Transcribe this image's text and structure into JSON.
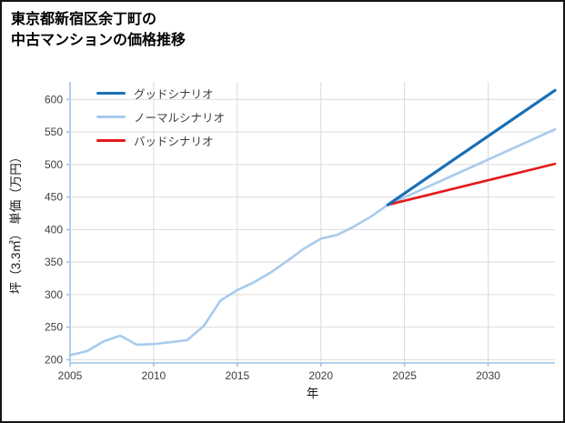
{
  "title": {
    "line1": "東京都新宿区余丁町の",
    "line2": "中古マンションの価格推移"
  },
  "chart_data": {
    "type": "line",
    "title": "東京都新宿区余丁町の中古マンションの価格推移",
    "xlabel": "年",
    "ylabel": "坪（3.3㎡） 単価（万円）",
    "xlim": [
      2005,
      2034
    ],
    "ylim": [
      195,
      627
    ],
    "xticks": [
      2005,
      2010,
      2015,
      2020,
      2025,
      2030
    ],
    "yticks": [
      200,
      250,
      300,
      350,
      400,
      450,
      500,
      550,
      600
    ],
    "grid": true,
    "grid_color": "#dcdcdc",
    "axis_color": "#9cc3e8",
    "tick_label_color": "#404040",
    "axis_label_color": "#1a1a1a",
    "legend_position": "upper-left",
    "series": [
      {
        "name": "グッドシナリオ",
        "color": "#1a6fb5",
        "width": 3.2,
        "x": [
          2024,
          2034
        ],
        "values": [
          438,
          614
        ]
      },
      {
        "name": "ノーマルシナリオ",
        "color": "#a6cbee",
        "width": 2.6,
        "x": [
          2005,
          2006,
          2007,
          2008,
          2009,
          2010,
          2011,
          2012,
          2013,
          2014,
          2015,
          2016,
          2017,
          2018,
          2019,
          2020,
          2021,
          2022,
          2023,
          2024,
          2034
        ],
        "values": [
          207,
          213,
          228,
          237,
          223,
          224,
          227,
          230,
          252,
          291,
          307,
          319,
          334,
          352,
          371,
          386,
          392,
          405,
          420,
          438,
          554
        ]
      },
      {
        "name": "バッドシナリオ",
        "color": "#e31b1c",
        "width": 2.6,
        "x": [
          2024,
          2034
        ],
        "values": [
          438,
          501
        ]
      }
    ]
  }
}
